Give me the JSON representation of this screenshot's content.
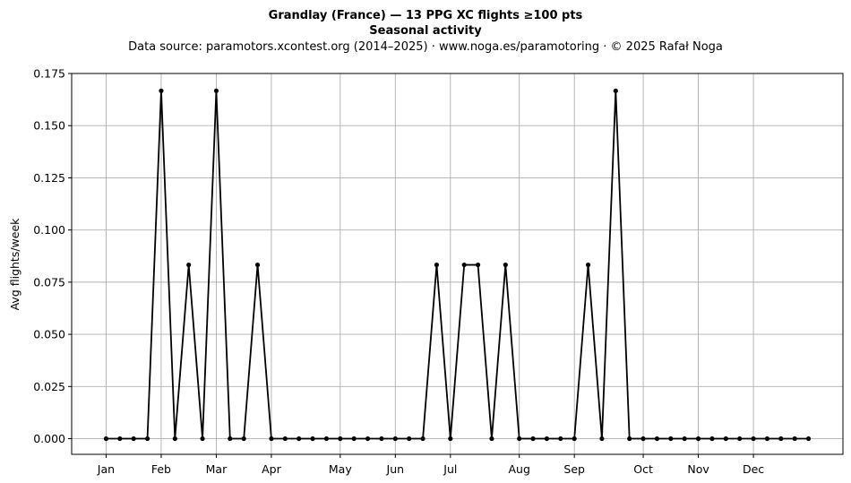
{
  "chart_data": {
    "type": "line",
    "title": "Grandlay (France)  —  13 PPG XC flights ≥100 pts",
    "subtitle": "Seasonal activity",
    "source_line": "Data source: paramotors.xcontest.org (2014–2025)  ·  www.noga.es/paramotoring  ·  © 2025 Rafał Noga",
    "xlabel": "",
    "ylabel": "Avg flights/week",
    "grid": true,
    "ylim": [
      -0.0075,
      0.175
    ],
    "xlim": [
      -2.5,
      53.5
    ],
    "y_ticks": [
      0.0,
      0.025,
      0.05,
      0.075,
      0.1,
      0.125,
      0.15,
      0.175
    ],
    "y_tick_labels": [
      "0.000",
      "0.025",
      "0.050",
      "0.075",
      "0.100",
      "0.125",
      "0.150",
      "0.175"
    ],
    "x_ticks": [
      0,
      4,
      8,
      12,
      17,
      21,
      25,
      30,
      34,
      39,
      43,
      47
    ],
    "x_tick_labels": [
      "Jan",
      "Feb",
      "Mar",
      "Apr",
      "May",
      "Jun",
      "Jul",
      "Aug",
      "Sep",
      "Oct",
      "Nov",
      "Dec"
    ],
    "line_color": "#000000",
    "grid_color": "#b0b0b0",
    "series": [
      {
        "x": [
          0,
          1,
          2,
          3,
          4,
          5,
          6,
          7,
          8,
          9,
          10,
          11,
          12,
          13,
          14,
          15,
          16,
          17,
          18,
          19,
          20,
          21,
          22,
          23,
          24,
          25,
          26,
          27,
          28,
          29,
          30,
          31,
          32,
          33,
          34,
          35,
          36,
          37,
          38,
          39,
          40,
          41,
          42,
          43,
          44,
          45,
          46,
          47,
          48,
          49,
          50,
          51
        ],
        "values": [
          0,
          0,
          0,
          0,
          0.1667,
          0,
          0.0833,
          0,
          0.1667,
          0,
          0,
          0.0833,
          0,
          0,
          0,
          0,
          0,
          0,
          0,
          0,
          0,
          0,
          0,
          0,
          0.0833,
          0,
          0.0833,
          0.0833,
          0,
          0.0833,
          0,
          0,
          0,
          0,
          0,
          0.0833,
          0,
          0.1667,
          0,
          0,
          0,
          0,
          0,
          0,
          0,
          0,
          0,
          0,
          0,
          0,
          0,
          0
        ]
      }
    ]
  }
}
